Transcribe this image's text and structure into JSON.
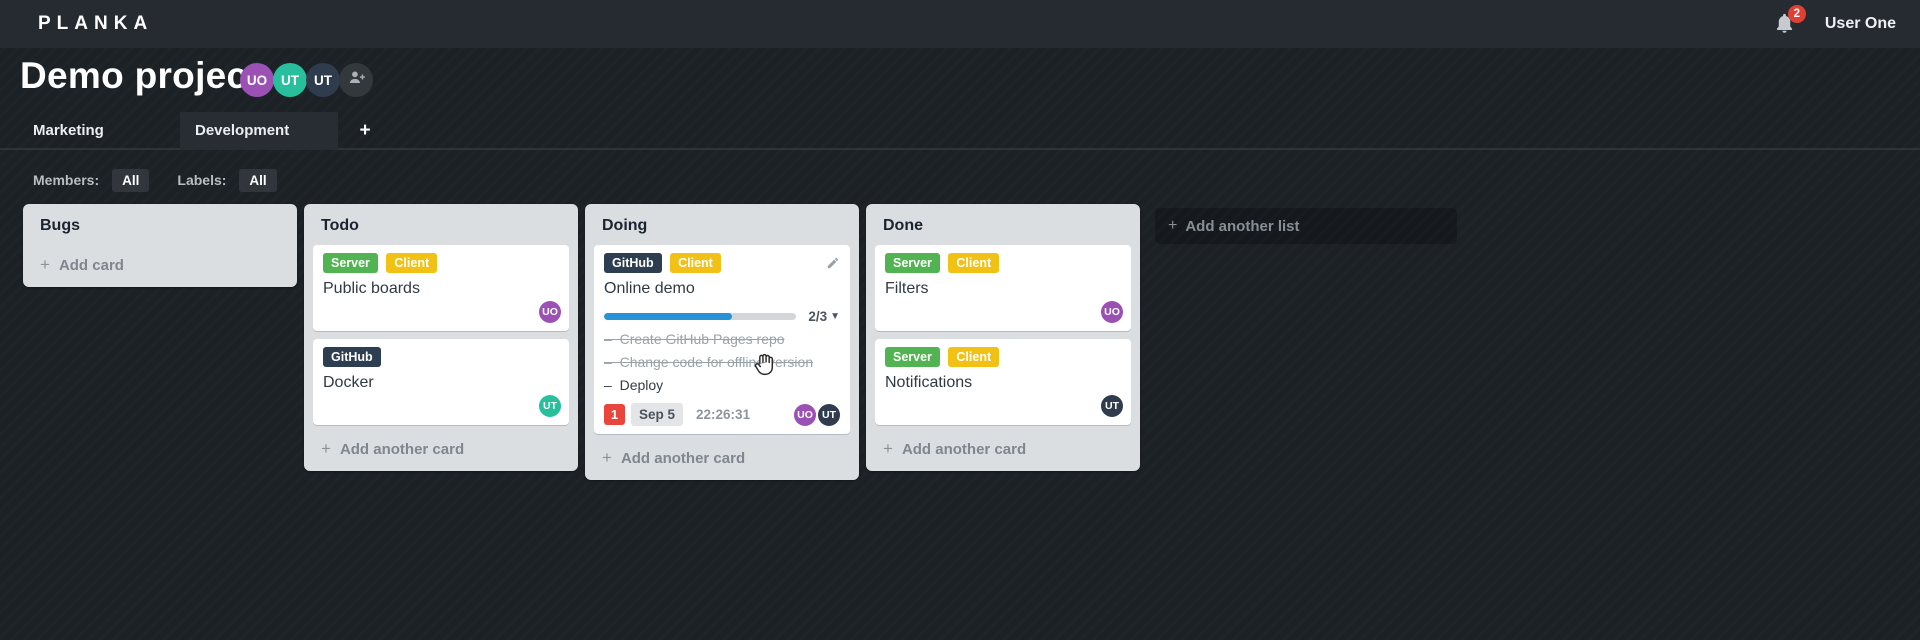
{
  "topbar": {
    "logo": "PLANKA",
    "notification_count": "2",
    "user_name": "User One"
  },
  "project": {
    "title": "Demo project",
    "members": [
      {
        "initials": "UO",
        "color": "#9b51b3"
      },
      {
        "initials": "UT",
        "color": "#27bf9c"
      },
      {
        "initials": "UT",
        "color": "#2e3c4e"
      }
    ]
  },
  "tabs": {
    "items": [
      {
        "label": "Marketing"
      },
      {
        "label": "Development"
      }
    ],
    "add_label": "+"
  },
  "filters": {
    "members_label": "Members:",
    "members_value": "All",
    "labels_label": "Labels:",
    "labels_value": "All"
  },
  "board": {
    "add_list_label": "Add another list",
    "lists": [
      {
        "title": "Bugs",
        "add_label": "Add card",
        "cards": []
      },
      {
        "title": "Todo",
        "add_label": "Add another card",
        "cards": [
          {
            "title": "Public boards",
            "labels": [
              {
                "text": "Server",
                "color": "#51b351"
              },
              {
                "text": "Client",
                "color": "#f1c115"
              }
            ],
            "assignee": {
              "initials": "UO",
              "color": "#9b51b3"
            }
          },
          {
            "title": "Docker",
            "labels": [
              {
                "text": "GitHub",
                "color": "#2d3e50"
              }
            ],
            "assignee": {
              "initials": "UT",
              "color": "#27bf9c"
            }
          }
        ]
      },
      {
        "title": "Doing",
        "add_label": "Add another card",
        "cards": [
          {
            "title": "Online demo",
            "labels": [
              {
                "text": "GitHub",
                "color": "#2d3e50"
              },
              {
                "text": "Client",
                "color": "#f1c115"
              }
            ],
            "progress": {
              "completed": 2,
              "total": 3,
              "label": "2/3",
              "fill_width": "66.7%",
              "color": "#2892d7"
            },
            "tasks": [
              {
                "text": "Create GitHub Pages repo",
                "done": true
              },
              {
                "text": "Change code for offline version",
                "done": true
              },
              {
                "text": "Deploy",
                "done": false
              }
            ],
            "notification_count": "1",
            "due_date": "Sep 5",
            "timer": "22:26:31",
            "assignees": [
              {
                "initials": "UO",
                "color": "#9b51b3"
              },
              {
                "initials": "UT",
                "color": "#2e3c4e"
              }
            ]
          }
        ]
      },
      {
        "title": "Done",
        "add_label": "Add another card",
        "cards": [
          {
            "title": "Filters",
            "labels": [
              {
                "text": "Server",
                "color": "#51b351"
              },
              {
                "text": "Client",
                "color": "#f1c115"
              }
            ],
            "assignee": {
              "initials": "UO",
              "color": "#9b51b3"
            }
          },
          {
            "title": "Notifications",
            "labels": [
              {
                "text": "Server",
                "color": "#51b351"
              },
              {
                "text": "Client",
                "color": "#f1c115"
              }
            ],
            "assignee": {
              "initials": "UT",
              "color": "#2e3c4e"
            }
          }
        ]
      }
    ]
  }
}
